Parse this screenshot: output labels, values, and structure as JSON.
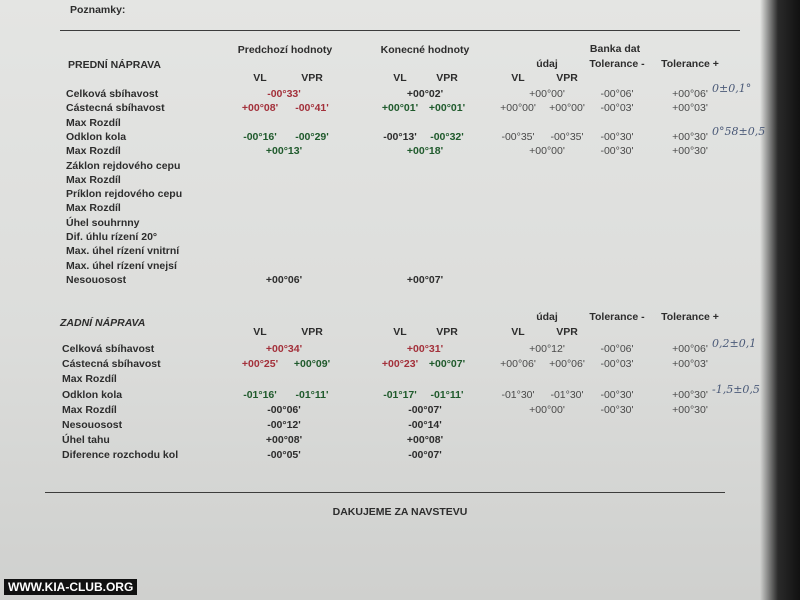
{
  "header": {
    "notes_label": "Poznamky:"
  },
  "front": {
    "title": "PREDNÍ NÁPRAVA",
    "groups": {
      "previous": "Predchozí hodnoty",
      "final": "Konecné hodnoty",
      "databank": "Banka dat"
    },
    "columns": {
      "prev_vl": "VL",
      "prev_vpr": "VPR",
      "final_vl": "VL",
      "final_vpr": "VPR",
      "udaj": "údaj",
      "udaj_vl": "VL",
      "udaj_vpr": "VPR",
      "tol_minus": "Tolerance -",
      "tol_plus": "Tolerance +"
    },
    "rows": [
      {
        "label": "Celková sbíhavost",
        "prev": "-00°33'",
        "final": "+00°02'",
        "udaj": "+00°00'",
        "tol_minus": "-00°06'",
        "tol_plus": "+00°06'",
        "note": "0±0,1°"
      },
      {
        "label": "Cástecná sbíhavost",
        "prev_vl": "+00°08'",
        "prev_vpr": "-00°41'",
        "final_vl": "+00°01'",
        "final_vpr": "+00°01'",
        "udaj_vl": "+00°00'",
        "udaj_vpr": "+00°00'",
        "tol_minus": "-00°03'",
        "tol_plus": "+00°03'"
      },
      {
        "label": "Max Rozdíl"
      },
      {
        "label": "Odklon kola",
        "prev_vl": "-00°16'",
        "prev_vpr": "-00°29'",
        "final_vl": "-00°13'",
        "final_vpr": "-00°32'",
        "udaj_vl": "-00°35'",
        "udaj_vpr": "-00°35'",
        "tol_minus": "-00°30'",
        "tol_plus": "+00°30'",
        "note": "0°58±0,5"
      },
      {
        "label": "Max Rozdíl",
        "prev": "+00°13'",
        "final": "+00°18'",
        "udaj": "+00°00'",
        "tol_minus": "-00°30'",
        "tol_plus": "+00°30'"
      },
      {
        "label": "Záklon rejdového cepu"
      },
      {
        "label": "Max Rozdíl"
      },
      {
        "label": "Príklon rejdového cepu"
      },
      {
        "label": "Max Rozdíl"
      },
      {
        "label": "Úhel souhrnny"
      },
      {
        "label": "Dif. úhlu rízení 20°"
      },
      {
        "label": "Max. úhel rízení vnitrní"
      },
      {
        "label": "Max. úhel rízení vnejsí"
      },
      {
        "label": "Nesouosost",
        "prev": "+00°06'",
        "final": "+00°07'"
      }
    ]
  },
  "rear": {
    "title": "ZADNÍ NÁPRAVA",
    "columns": {
      "prev_vl": "VL",
      "prev_vpr": "VPR",
      "final_vl": "VL",
      "final_vpr": "VPR",
      "udaj": "údaj",
      "udaj_vl": "VL",
      "udaj_vpr": "VPR",
      "tol_minus": "Tolerance -",
      "tol_plus": "Tolerance +"
    },
    "rows": [
      {
        "label": "Celková sbíhavost",
        "prev": "+00°34'",
        "final": "+00°31'",
        "udaj": "+00°12'",
        "tol_minus": "-00°06'",
        "tol_plus": "+00°06'",
        "note": "0,2±0,1"
      },
      {
        "label": "Cástecná sbíhavost",
        "prev_vl": "+00°25'",
        "prev_vpr": "+00°09'",
        "final_vl": "+00°23'",
        "final_vpr": "+00°07'",
        "udaj_vl": "+00°06'",
        "udaj_vpr": "+00°06'",
        "tol_minus": "-00°03'",
        "tol_plus": "+00°03'"
      },
      {
        "label": "Max Rozdíl"
      },
      {
        "label": "Odklon kola",
        "prev_vl": "-01°16'",
        "prev_vpr": "-01°11'",
        "final_vl": "-01°17'",
        "final_vpr": "-01°11'",
        "udaj_vl": "-01°30'",
        "udaj_vpr": "-01°30'",
        "tol_minus": "-00°30'",
        "tol_plus": "+00°30'",
        "note": "-1,5±0,5"
      },
      {
        "label": "Max Rozdíl",
        "prev": "-00°06'",
        "final": "-00°07'",
        "udaj": "+00°00'",
        "tol_minus": "-00°30'",
        "tol_plus": "+00°30'"
      },
      {
        "label": "Nesouosost",
        "prev": "-00°12'",
        "final": "-00°14'"
      },
      {
        "label": "Úhel tahu",
        "prev": "+00°08'",
        "final": "+00°08'"
      },
      {
        "label": "Diference rozchodu kol",
        "prev": "-00°05'",
        "final": "-00°07'"
      }
    ]
  },
  "footer": {
    "thanks": "DAKUJEME ZA NAVSTEVU",
    "watermark": "WWW.KIA-CLUB.ORG"
  }
}
